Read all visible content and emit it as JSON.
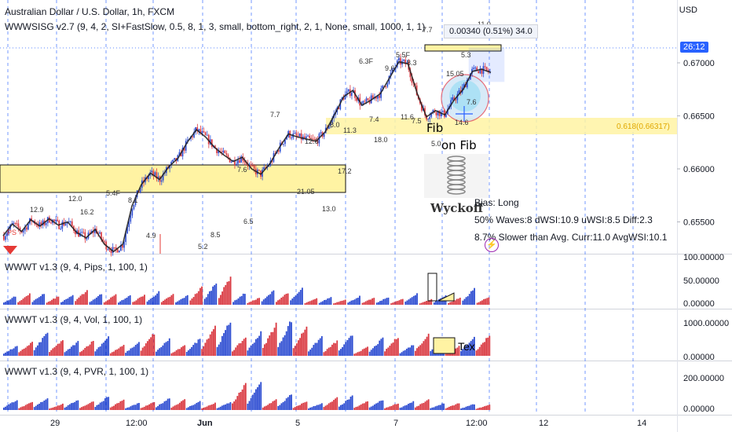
{
  "header": {
    "title": "Australian Dollar / U.S. Dollar, 1h, FXCM",
    "indicator": "WWWSISG v2.7 (9, 4, 2, SI+FastSlow, 0.5, 8, 1, 3, small, bottom_right, 2, 1, None, small, 1000, 1, 1)"
  },
  "currency": "USD",
  "infobox": "0.00340 (0.51%) 34.0",
  "price_tag": "26:12",
  "fib_label": "0.618(0.66317)",
  "fib_text": [
    "Fib",
    "on Fib"
  ],
  "wyckoff": "Wyckoff",
  "stats": [
    "Bias: Long",
    "50% Waves:8 dWSI:10.9 uWSI:8.5 Diff:2.3",
    "8.7% Slower than Avg. Curr:11.0 AvgWSI:10.1"
  ],
  "panel_labels": [
    "WWWT v1.3 (9, 4, Pips, 1, 100, 1)",
    "WWWT v1.3 (9, 4, Vol, 1, 100, 1)",
    "WWWT v1.3 (9, 4, PVR, 1, 100, 1)"
  ],
  "tex_label": "Tex",
  "colors": {
    "up": "#2b4bd1",
    "down": "#d9373f",
    "zone": "#fff3a3",
    "gridline": "#2962ff",
    "tag": "#2962ff"
  },
  "chart_data": [
    {
      "type": "candlestick",
      "title": "Australian Dollar / U.S. Dollar, 1h, FXCM",
      "y_ticks": [
        0.67,
        0.665,
        0.66,
        0.655
      ],
      "y_tick_labels": [
        "0.67000",
        "0.66500",
        "0.66000",
        "0.65500"
      ],
      "x_tick_labels": [
        "29",
        "12:00",
        "Jun",
        "5",
        "7",
        "12:00",
        "12",
        "14"
      ],
      "close_path": [
        0.6537,
        0.6548,
        0.6541,
        0.6552,
        0.6546,
        0.6553,
        0.6547,
        0.655,
        0.654,
        0.6535,
        0.6543,
        0.6529,
        0.6522,
        0.6529,
        0.6565,
        0.6585,
        0.6596,
        0.659,
        0.6602,
        0.661,
        0.6625,
        0.6637,
        0.663,
        0.662,
        0.6613,
        0.6607,
        0.6611,
        0.66,
        0.6595,
        0.6605,
        0.662,
        0.6633,
        0.663,
        0.6628,
        0.6626,
        0.6635,
        0.6651,
        0.6668,
        0.6674,
        0.666,
        0.6665,
        0.6671,
        0.6686,
        0.6701,
        0.6699,
        0.6671,
        0.6649,
        0.6655,
        0.6651,
        0.6665,
        0.6675,
        0.6692,
        0.6694,
        0.6691
      ],
      "wave_labels": [
        "12.9",
        "12.0",
        "16.2",
        "5.4F",
        "8.1",
        "4.9",
        "5.2",
        "8.5",
        "6.5",
        "7.7",
        "7.6",
        "12.6",
        "21.05",
        "17.2",
        "13.0",
        "8.0",
        "11.3",
        "6.3F",
        "18.0",
        "9.6",
        "7.4",
        "11.6",
        "7.5",
        "5.5F",
        "8.3",
        "7.7",
        "15.05",
        "5.3",
        "11.0",
        "7.6",
        "14.6",
        "5.0"
      ]
    },
    {
      "type": "bar",
      "name": "WWWT v1.3 (9, 4, Pips, 1, 100, 1)",
      "y_ticks": [
        0,
        50,
        100
      ],
      "y_tick_labels": [
        "0.00000",
        "50.00000",
        "100.00000"
      ],
      "peaks": [
        22,
        28,
        30,
        22,
        25,
        38,
        28,
        26,
        24,
        26,
        33,
        27,
        24,
        46,
        58,
        74,
        30,
        18,
        36,
        32,
        42,
        16,
        20,
        14,
        22,
        18,
        20,
        15,
        30,
        14,
        25,
        18,
        42,
        20
      ]
    },
    {
      "type": "bar",
      "name": "WWWT v1.3 (9, 4, Vol, 1, 100, 1)",
      "y_ticks": [
        0,
        1000
      ],
      "y_tick_labels": [
        "0.00000",
        "1000.00000"
      ],
      "peaks": [
        260,
        370,
        640,
        430,
        380,
        400,
        520,
        280,
        360,
        610,
        460,
        270,
        460,
        820,
        940,
        500,
        620,
        860,
        970,
        800,
        520,
        400,
        560,
        230,
        470,
        520,
        300,
        580,
        500,
        260,
        520,
        560
      ]
    },
    {
      "type": "bar",
      "name": "WWWT v1.3 (9, 4, PVR, 1, 100, 1)",
      "y_ticks": [
        0,
        200
      ],
      "y_tick_labels": [
        "0.00000",
        "200.00000"
      ],
      "peaks": [
        60,
        45,
        70,
        35,
        60,
        50,
        80,
        60,
        40,
        45,
        70,
        60,
        50,
        40,
        45,
        150,
        160,
        60,
        90,
        50,
        40,
        70,
        80,
        50,
        60,
        40,
        50,
        60,
        40,
        40,
        35,
        30
      ]
    }
  ]
}
